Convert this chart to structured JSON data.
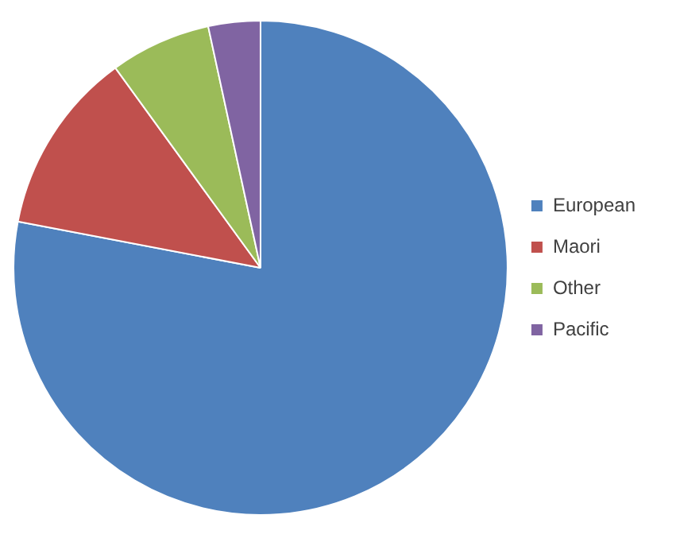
{
  "chart_data": {
    "type": "pie",
    "categories": [
      "European",
      "Maori",
      "Other",
      "Pacific"
    ],
    "values": [
      78,
      12,
      6.6,
      3.4
    ],
    "colors": [
      "#4f81bd",
      "#c0504d",
      "#9bbb59",
      "#8064a2"
    ],
    "legend": "right"
  }
}
